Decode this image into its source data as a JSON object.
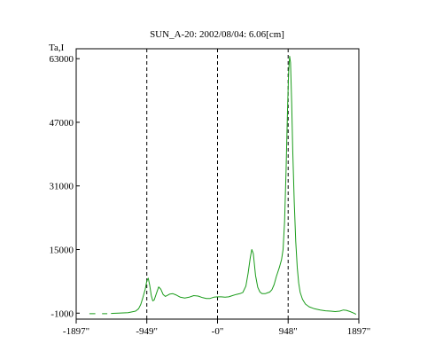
{
  "chart_data": {
    "type": "line",
    "title": "SUN_A-20: 2002/08/04: 6.06[cm]",
    "ylabel": "Ta,I",
    "xlabel": "",
    "xlim": [
      -1897,
      1897
    ],
    "ylim": [
      -2500,
      65500
    ],
    "y_ticks": [
      {
        "value": -1000,
        "label": "-1000"
      },
      {
        "value": 15000,
        "label": "15000"
      },
      {
        "value": 31000,
        "label": "31000"
      },
      {
        "value": 47000,
        "label": "47000"
      },
      {
        "value": 63000,
        "label": "63000"
      }
    ],
    "x_ticks": [
      {
        "value": -1897,
        "label": "-1897\""
      },
      {
        "value": -949,
        "label": "-949\""
      },
      {
        "value": 0,
        "label": "-0\""
      },
      {
        "value": 948,
        "label": "948\""
      },
      {
        "value": 1897,
        "label": "1897\""
      }
    ],
    "reference_lines_x": [
      -949,
      0,
      948
    ],
    "grid": false,
    "series": [
      {
        "color": "#1a9c1a",
        "points": [
          [
            -1720,
            -1150
          ],
          [
            -1640,
            -1150
          ],
          [
            -1550,
            -1150
          ],
          [
            -1480,
            -1150
          ],
          [
            -1430,
            -1080
          ],
          [
            -1330,
            -1000
          ],
          [
            -1200,
            -900
          ],
          [
            -1100,
            -500
          ],
          [
            -1060,
            100
          ],
          [
            -1030,
            1200
          ],
          [
            -1000,
            3000
          ],
          [
            -970,
            5000
          ],
          [
            -950,
            7000
          ],
          [
            -930,
            7800
          ],
          [
            -910,
            6000
          ],
          [
            -890,
            3500
          ],
          [
            -870,
            2100
          ],
          [
            -850,
            2300
          ],
          [
            -820,
            4000
          ],
          [
            -790,
            5600
          ],
          [
            -760,
            5000
          ],
          [
            -730,
            3700
          ],
          [
            -700,
            3200
          ],
          [
            -670,
            3500
          ],
          [
            -640,
            3800
          ],
          [
            -600,
            3900
          ],
          [
            -560,
            3600
          ],
          [
            -500,
            3000
          ],
          [
            -440,
            2800
          ],
          [
            -380,
            3000
          ],
          [
            -320,
            3400
          ],
          [
            -260,
            3300
          ],
          [
            -200,
            2900
          ],
          [
            -150,
            2700
          ],
          [
            -100,
            2700
          ],
          [
            -50,
            3000
          ],
          [
            0,
            3100
          ],
          [
            50,
            3100
          ],
          [
            100,
            3000
          ],
          [
            150,
            3100
          ],
          [
            200,
            3400
          ],
          [
            250,
            3700
          ],
          [
            300,
            3900
          ],
          [
            340,
            4200
          ],
          [
            380,
            5800
          ],
          [
            410,
            9000
          ],
          [
            440,
            13000
          ],
          [
            460,
            15000
          ],
          [
            480,
            14000
          ],
          [
            510,
            8500
          ],
          [
            540,
            5500
          ],
          [
            570,
            4300
          ],
          [
            600,
            3900
          ],
          [
            640,
            3900
          ],
          [
            670,
            4100
          ],
          [
            700,
            4300
          ],
          [
            730,
            4900
          ],
          [
            760,
            6200
          ],
          [
            790,
            8200
          ],
          [
            830,
            10500
          ],
          [
            860,
            12500
          ],
          [
            880,
            15000
          ],
          [
            900,
            22000
          ],
          [
            920,
            35000
          ],
          [
            940,
            50000
          ],
          [
            955,
            60000
          ],
          [
            968,
            63600
          ],
          [
            980,
            62000
          ],
          [
            995,
            52000
          ],
          [
            1010,
            40000
          ],
          [
            1030,
            27000
          ],
          [
            1050,
            17000
          ],
          [
            1070,
            10500
          ],
          [
            1090,
            6600
          ],
          [
            1110,
            4200
          ],
          [
            1140,
            2500
          ],
          [
            1180,
            1300
          ],
          [
            1230,
            600
          ],
          [
            1300,
            100
          ],
          [
            1380,
            -200
          ],
          [
            1450,
            -400
          ],
          [
            1520,
            -500
          ],
          [
            1580,
            -600
          ],
          [
            1640,
            -500
          ],
          [
            1690,
            -200
          ],
          [
            1730,
            -300
          ],
          [
            1780,
            -600
          ],
          [
            1830,
            -1000
          ],
          [
            1860,
            -1300
          ]
        ]
      }
    ]
  }
}
